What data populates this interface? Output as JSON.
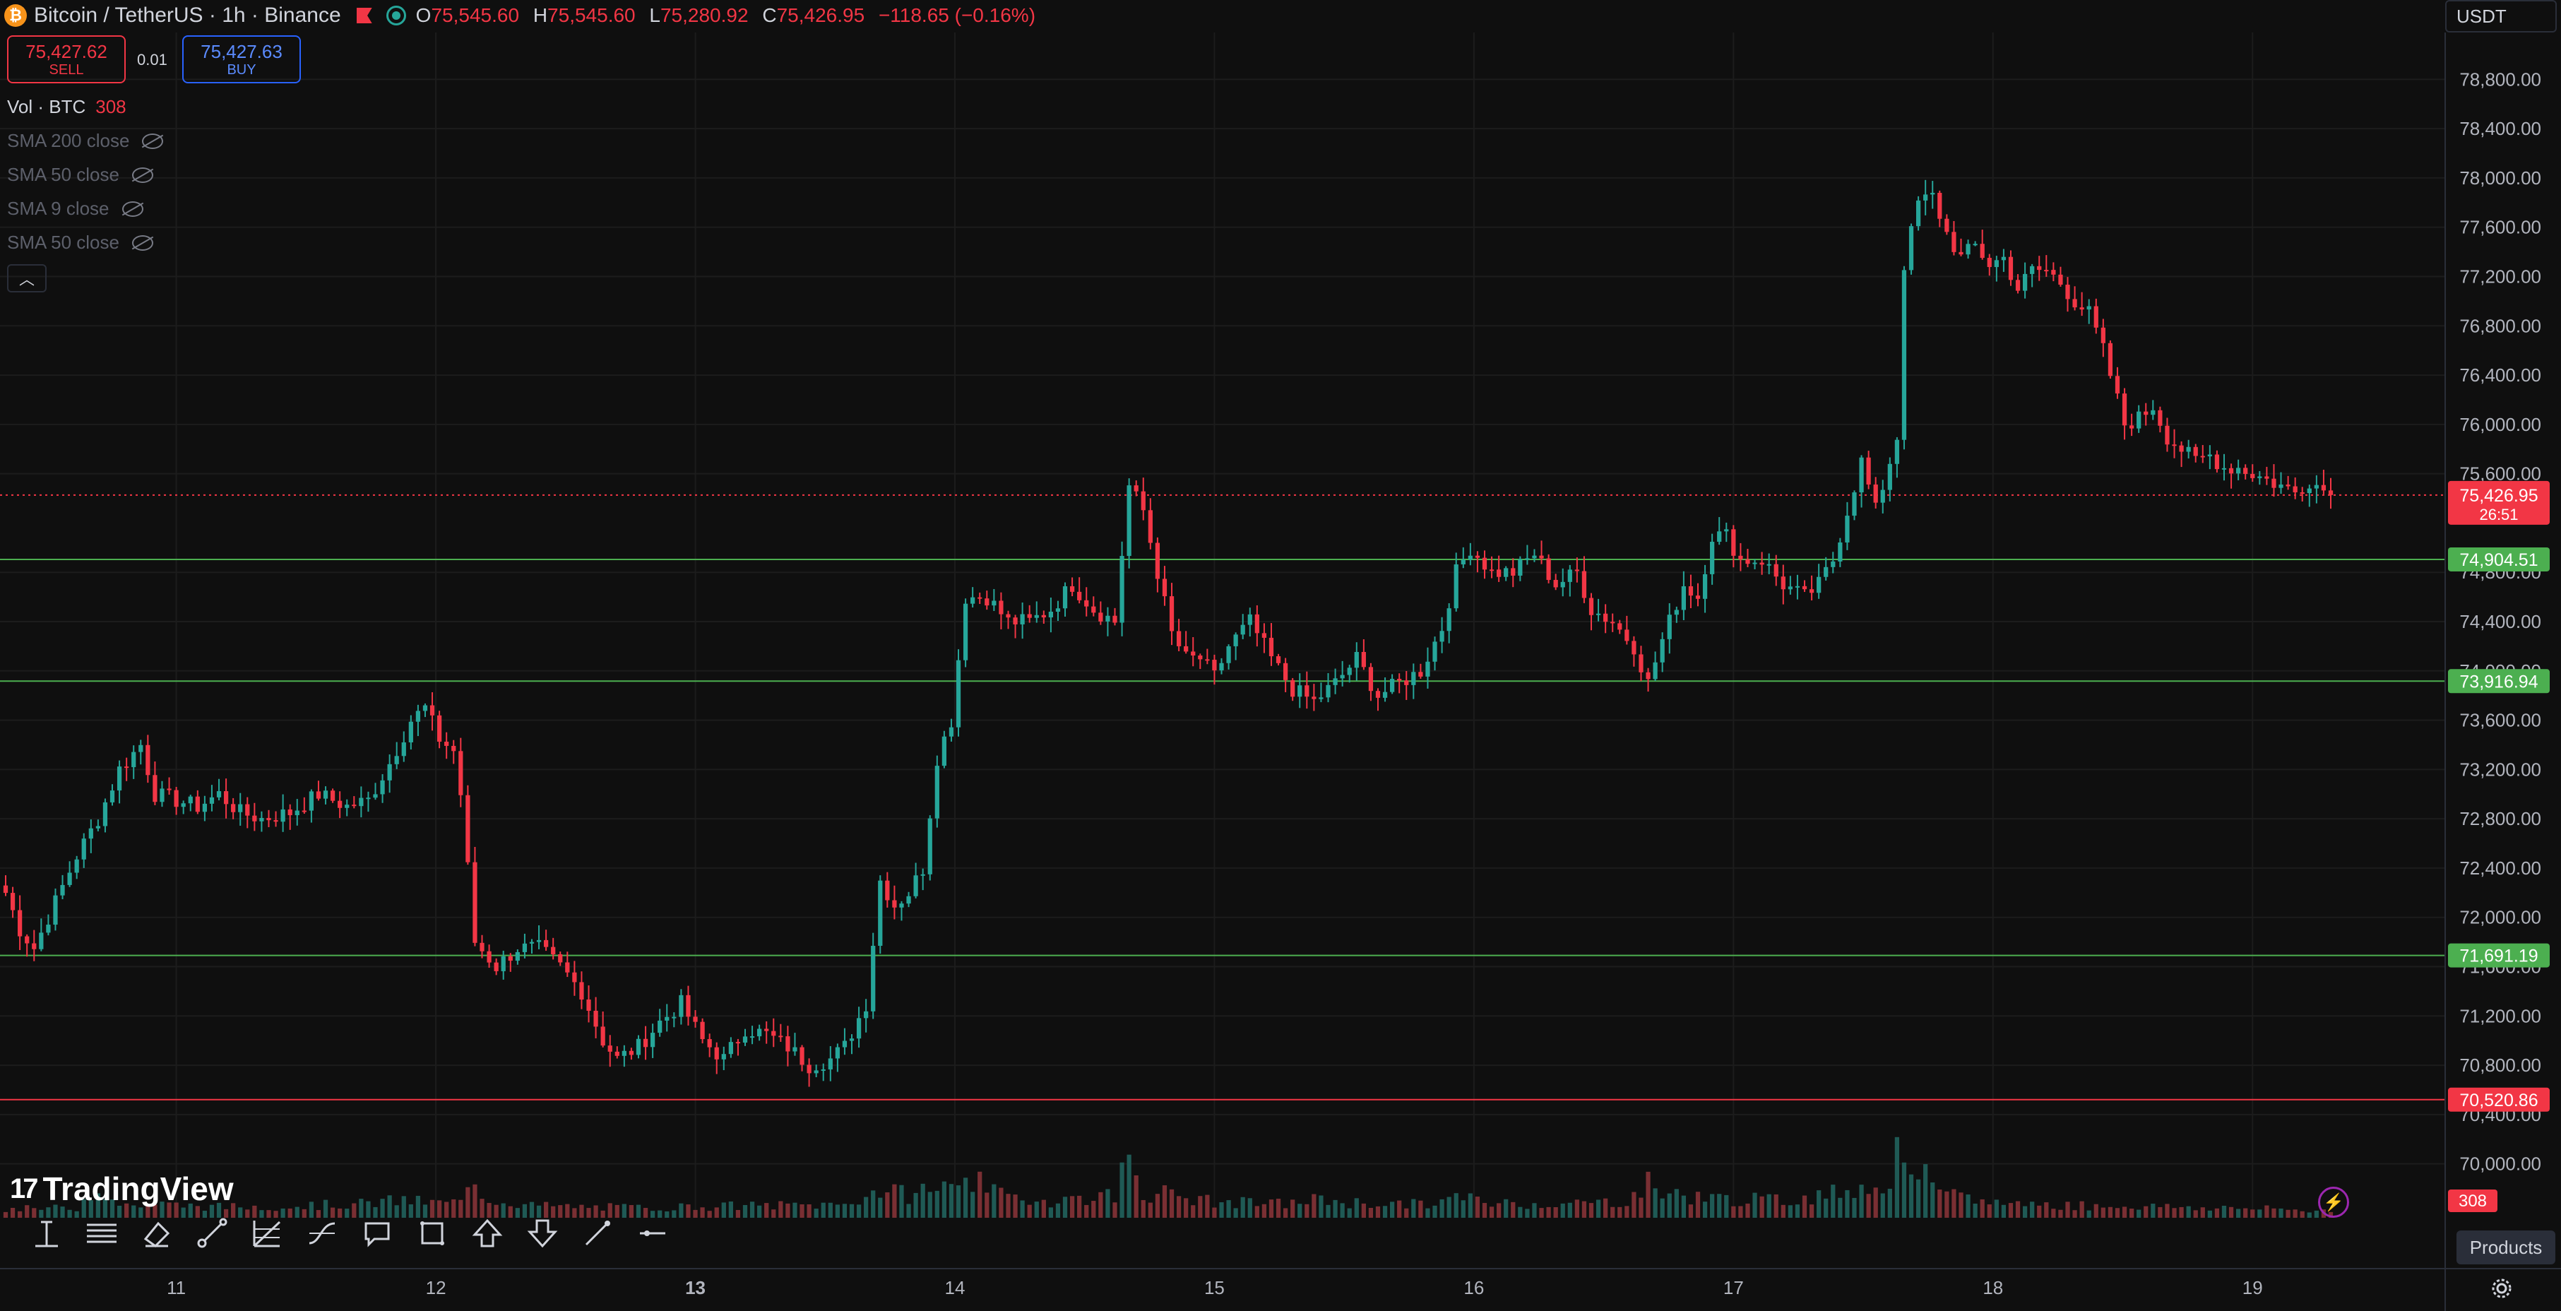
{
  "header": {
    "symbol_title": "Bitcoin / TetherUS · 1h · Binance",
    "coin_icon": "bitcoin-icon",
    "ohlc": {
      "o_label": "O",
      "o_value": "75,545.60",
      "h_label": "H",
      "h_value": "75,545.60",
      "l_label": "L",
      "l_value": "75,280.92",
      "c_label": "C",
      "c_value": "75,426.95",
      "change": "−118.65 (−0.16%)"
    },
    "currency_select": "USDT"
  },
  "trade": {
    "sell_price": "75,427.62",
    "sell_label": "SELL",
    "spread": "0.01",
    "buy_price": "75,427.63",
    "buy_label": "BUY"
  },
  "legend": {
    "volume_label": "Vol · BTC",
    "volume_value": "308",
    "indicators": [
      "SMA 200 close",
      "SMA 50 close",
      "SMA 9 close",
      "SMA 50 close"
    ]
  },
  "branding": "TradingView",
  "toolbar": {
    "tools": [
      "trend-line-icon",
      "horizontal-lines-icon",
      "eraser-icon",
      "brush-icon",
      "fib-icon",
      "path-icon",
      "comment-icon",
      "rectangle-icon",
      "arrow-up-icon",
      "arrow-down-icon",
      "ray-icon",
      "horizontal-line-icon"
    ]
  },
  "products_button": "Products",
  "colors": {
    "background": "#0f0f0f",
    "up": "#26a69a",
    "down": "#f23645",
    "up_volume": "#1f5a55",
    "down_volume": "#7a2f33",
    "level_line_green": "#4caf50",
    "level_line_red": "#f23645",
    "grid": "#1c1c1c",
    "axis_text": "#b2b5be"
  },
  "chart_data": {
    "type": "candlestick",
    "symbol": "Bitcoin / TetherUS",
    "interval": "1h",
    "exchange": "Binance",
    "x_tick_labels": [
      "11",
      "12",
      "13",
      "14",
      "15",
      "16",
      "17",
      "18",
      "19"
    ],
    "bold_x_tick": "13",
    "y_tick_labels": [
      "78,800.00",
      "78,400.00",
      "78,000.00",
      "77,600.00",
      "77,200.00",
      "76,800.00",
      "76,400.00",
      "76,000.00",
      "75,600.00",
      "74,800.00",
      "74,400.00",
      "74,000.00",
      "73,600.00",
      "73,200.00",
      "72,800.00",
      "72,400.00",
      "72,000.00",
      "71,600.00",
      "71,200.00",
      "70,800.00",
      "70,400.00",
      "70,000.00"
    ],
    "ylim": [
      69700,
      79100
    ],
    "y_ticks": [
      78800,
      78400,
      78000,
      77600,
      77200,
      76800,
      76400,
      76000,
      75600,
      74800,
      74400,
      74000,
      73600,
      73200,
      72800,
      72400,
      72000,
      71600,
      71200,
      70800,
      70400,
      70000
    ],
    "current_price": {
      "value": 75426.95,
      "label": "75,426.95",
      "countdown": "26:51"
    },
    "level_lines": [
      {
        "value": 74904.51,
        "label": "74,904.51",
        "color": "#4caf50"
      },
      {
        "value": 73916.94,
        "label": "73,916.94",
        "color": "#4caf50"
      },
      {
        "value": 71691.19,
        "label": "71,691.19",
        "color": "#4caf50"
      },
      {
        "value": 70520.86,
        "label": "70,520.86",
        "color": "#f23645"
      }
    ],
    "volume_badge": "308",
    "day_ticks": [
      {
        "label": "11",
        "bar": 24
      },
      {
        "label": "12",
        "bar": 60.5
      },
      {
        "label": "13",
        "bar": 97
      },
      {
        "label": "14",
        "bar": 133.5
      },
      {
        "label": "15",
        "bar": 170
      },
      {
        "label": "16",
        "bar": 206.5
      },
      {
        "label": "17",
        "bar": 243
      },
      {
        "label": "18",
        "bar": 279.5
      },
      {
        "label": "19",
        "bar": 316
      }
    ],
    "price_anchors": [
      [
        0,
        72200
      ],
      [
        2,
        71900
      ],
      [
        4,
        71750
      ],
      [
        6,
        72000
      ],
      [
        8,
        72250
      ],
      [
        10,
        72500
      ],
      [
        13,
        72800
      ],
      [
        16,
        73200
      ],
      [
        19,
        73400
      ],
      [
        21,
        73000
      ],
      [
        24,
        72950
      ],
      [
        27,
        72900
      ],
      [
        30,
        73000
      ],
      [
        33,
        72850
      ],
      [
        36,
        72800
      ],
      [
        40,
        72850
      ],
      [
        44,
        73000
      ],
      [
        48,
        72900
      ],
      [
        51,
        72950
      ],
      [
        54,
        73250
      ],
      [
        57,
        73600
      ],
      [
        59,
        73700
      ],
      [
        61,
        73450
      ],
      [
        63,
        73350
      ],
      [
        64,
        73000
      ],
      [
        66,
        71800
      ],
      [
        69,
        71600
      ],
      [
        72,
        71750
      ],
      [
        75,
        71750
      ],
      [
        78,
        71600
      ],
      [
        81,
        71400
      ],
      [
        84,
        71000
      ],
      [
        86,
        70850
      ],
      [
        89,
        70950
      ],
      [
        92,
        71150
      ],
      [
        95,
        71300
      ],
      [
        98,
        71000
      ],
      [
        101,
        70850
      ],
      [
        104,
        71100
      ],
      [
        107,
        71050
      ],
      [
        110,
        70950
      ],
      [
        113,
        70800
      ],
      [
        116,
        70850
      ],
      [
        118,
        70950
      ],
      [
        121,
        71300
      ],
      [
        123,
        72300
      ],
      [
        125,
        72100
      ],
      [
        127,
        72200
      ],
      [
        129,
        72400
      ],
      [
        131,
        73300
      ],
      [
        133,
        73600
      ],
      [
        135,
        74600
      ],
      [
        138,
        74600
      ],
      [
        141,
        74400
      ],
      [
        144,
        74400
      ],
      [
        147,
        74500
      ],
      [
        150,
        74700
      ],
      [
        153,
        74500
      ],
      [
        156,
        74400
      ],
      [
        158,
        75500
      ],
      [
        160,
        75300
      ],
      [
        162,
        74800
      ],
      [
        164,
        74300
      ],
      [
        166,
        74100
      ],
      [
        168,
        74100
      ],
      [
        170,
        73950
      ],
      [
        172,
        74200
      ],
      [
        175,
        74400
      ],
      [
        178,
        74100
      ],
      [
        181,
        73850
      ],
      [
        184,
        73750
      ],
      [
        187,
        73900
      ],
      [
        190,
        74100
      ],
      [
        193,
        73800
      ],
      [
        196,
        73900
      ],
      [
        199,
        74000
      ],
      [
        202,
        74350
      ],
      [
        204,
        74800
      ],
      [
        206,
        75000
      ],
      [
        209,
        74800
      ],
      [
        212,
        74800
      ],
      [
        215,
        74950
      ],
      [
        218,
        74700
      ],
      [
        221,
        74800
      ],
      [
        223,
        74500
      ],
      [
        226,
        74400
      ],
      [
        229,
        74200
      ],
      [
        231,
        73900
      ],
      [
        233,
        74250
      ],
      [
        236,
        74700
      ],
      [
        238,
        74600
      ],
      [
        240,
        75100
      ],
      [
        242,
        75100
      ],
      [
        244,
        74900
      ],
      [
        247,
        74900
      ],
      [
        250,
        74700
      ],
      [
        253,
        74600
      ],
      [
        255,
        74700
      ],
      [
        257,
        74900
      ],
      [
        259,
        75300
      ],
      [
        261,
        75700
      ],
      [
        263,
        75300
      ],
      [
        264,
        75500
      ],
      [
        266,
        75900
      ],
      [
        267,
        77300
      ],
      [
        269,
        77800
      ],
      [
        271,
        77850
      ],
      [
        273,
        77550
      ],
      [
        275,
        77350
      ],
      [
        277,
        77450
      ],
      [
        279,
        77300
      ],
      [
        281,
        77350
      ],
      [
        283,
        77100
      ],
      [
        285,
        77250
      ],
      [
        287,
        77250
      ],
      [
        289,
        77150
      ],
      [
        291,
        77000
      ],
      [
        293,
        76900
      ],
      [
        295,
        76600
      ],
      [
        298,
        76000
      ],
      [
        300,
        76050
      ],
      [
        302,
        76150
      ],
      [
        304,
        75900
      ],
      [
        306,
        75800
      ],
      [
        308,
        75700
      ],
      [
        310,
        75750
      ],
      [
        312,
        75650
      ],
      [
        314,
        75650
      ],
      [
        316,
        75600
      ],
      [
        318,
        75550
      ],
      [
        320,
        75500
      ],
      [
        322,
        75450
      ],
      [
        324,
        75550
      ],
      [
        327,
        75430
      ]
    ],
    "volume_profile": [
      [
        0,
        22
      ],
      [
        10,
        26
      ],
      [
        13,
        88
      ],
      [
        16,
        32
      ],
      [
        22,
        34
      ],
      [
        30,
        28
      ],
      [
        40,
        30
      ],
      [
        50,
        36
      ],
      [
        56,
        45
      ],
      [
        60,
        38
      ],
      [
        64,
        40
      ],
      [
        66,
        88
      ],
      [
        68,
        48
      ],
      [
        74,
        32
      ],
      [
        80,
        28
      ],
      [
        90,
        26
      ],
      [
        100,
        30
      ],
      [
        110,
        32
      ],
      [
        118,
        34
      ],
      [
        121,
        58
      ],
      [
        123,
        70
      ],
      [
        127,
        58
      ],
      [
        130,
        80
      ],
      [
        131,
        70
      ],
      [
        133,
        84
      ],
      [
        135,
        128
      ],
      [
        138,
        66
      ],
      [
        141,
        54
      ],
      [
        147,
        44
      ],
      [
        150,
        50
      ],
      [
        156,
        58
      ],
      [
        158,
        168
      ],
      [
        160,
        64
      ],
      [
        163,
        62
      ],
      [
        166,
        52
      ],
      [
        170,
        40
      ],
      [
        180,
        36
      ],
      [
        185,
        48
      ],
      [
        190,
        38
      ],
      [
        200,
        34
      ],
      [
        204,
        52
      ],
      [
        210,
        38
      ],
      [
        220,
        36
      ],
      [
        228,
        44
      ],
      [
        231,
        88
      ],
      [
        233,
        66
      ],
      [
        236,
        58
      ],
      [
        240,
        50
      ],
      [
        250,
        44
      ],
      [
        257,
        64
      ],
      [
        259,
        78
      ],
      [
        261,
        84
      ],
      [
        263,
        70
      ],
      [
        265,
        112
      ],
      [
        267,
        190
      ],
      [
        269,
        120
      ],
      [
        272,
        58
      ],
      [
        280,
        40
      ],
      [
        290,
        32
      ],
      [
        300,
        30
      ],
      [
        310,
        26
      ],
      [
        320,
        22
      ],
      [
        327,
        18
      ]
    ],
    "volume_max_scale": 400,
    "bar_count": 328
  }
}
